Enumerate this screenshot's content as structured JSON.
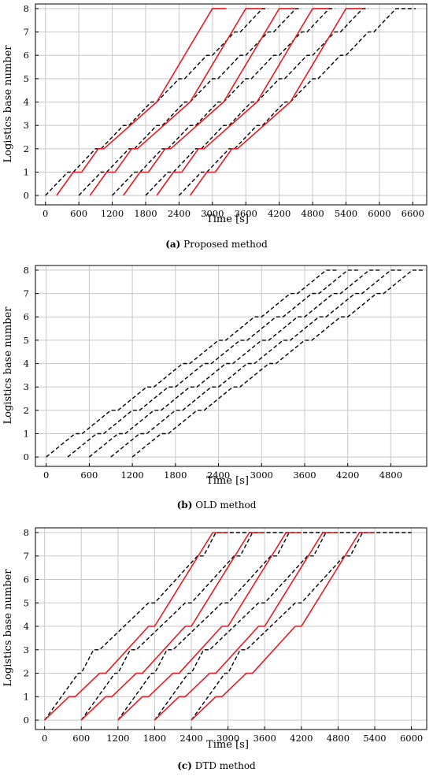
{
  "colors": {
    "proposed": "#e8191f",
    "baseline": "#000000",
    "grid": "#c8c8c8"
  },
  "chart_data": [
    {
      "type": "line",
      "caption_tag": "(a)",
      "caption_text": " Proposed method",
      "xlabel": "Time [s]",
      "ylabel": "Logistics base number",
      "xlim": [
        -180,
        6850
      ],
      "ylim": [
        -0.4,
        8.2
      ],
      "xticks": [
        "0",
        "600",
        "1200",
        "1800",
        "2400",
        "3000",
        "3600",
        "4200",
        "4800",
        "5400",
        "6000",
        "6600"
      ],
      "yticks": [
        "0",
        "1",
        "2",
        "3",
        "4",
        "5",
        "6",
        "7",
        "8"
      ],
      "grid": true,
      "series": [
        {
          "style": "dashed",
          "x": [
            0,
            400,
            500,
            900,
            1000,
            1400,
            1500,
            1900,
            2000,
            2400,
            2500,
            2900,
            3000,
            3400,
            3500,
            3900,
            4000
          ],
          "y": [
            0,
            1,
            1,
            2,
            2,
            3,
            3,
            4,
            4,
            5,
            5,
            6,
            6,
            7,
            7,
            8,
            8
          ]
        },
        {
          "style": "dashed",
          "x": [
            600,
            1000,
            1100,
            1500,
            1600,
            2000,
            2100,
            2500,
            2600,
            3000,
            3100,
            3500,
            3600,
            4000,
            4100,
            4500,
            4600
          ],
          "y": [
            0,
            1,
            1,
            2,
            2,
            3,
            3,
            4,
            4,
            5,
            5,
            6,
            6,
            7,
            7,
            8,
            8
          ]
        },
        {
          "style": "dashed",
          "x": [
            1200,
            1600,
            1700,
            2100,
            2200,
            2600,
            2700,
            3100,
            3200,
            3600,
            3700,
            4100,
            4200,
            4600,
            4700,
            5100,
            5200
          ],
          "y": [
            0,
            1,
            1,
            2,
            2,
            3,
            3,
            4,
            4,
            5,
            5,
            6,
            6,
            7,
            7,
            8,
            8
          ]
        },
        {
          "style": "dashed",
          "x": [
            1800,
            2200,
            2300,
            2700,
            2800,
            3200,
            3300,
            3700,
            3800,
            4200,
            4300,
            4700,
            4800,
            5200,
            5300,
            5700,
            5800
          ],
          "y": [
            0,
            1,
            1,
            2,
            2,
            3,
            3,
            4,
            4,
            5,
            5,
            6,
            6,
            7,
            7,
            8,
            8
          ]
        },
        {
          "style": "dashed",
          "x": [
            2400,
            2800,
            2900,
            3300,
            3400,
            3800,
            3900,
            4300,
            4400,
            4800,
            4900,
            5300,
            5400,
            5800,
            5900,
            6300,
            6650
          ],
          "y": [
            0,
            1,
            1,
            2,
            2,
            3,
            3,
            4,
            4,
            5,
            5,
            6,
            6,
            7,
            7,
            8,
            8
          ]
        },
        {
          "style": "solid",
          "x": [
            200,
            500,
            650,
            950,
            1050,
            2000,
            3000,
            3250
          ],
          "y": [
            0,
            1,
            1,
            2,
            2,
            4,
            8,
            8
          ]
        },
        {
          "style": "solid",
          "x": [
            800,
            1100,
            1250,
            1550,
            1650,
            2600,
            3600,
            3900
          ],
          "y": [
            0,
            1,
            1,
            2,
            2,
            4,
            8,
            8
          ]
        },
        {
          "style": "solid",
          "x": [
            1400,
            1700,
            1850,
            2150,
            2250,
            3200,
            4200,
            4500
          ],
          "y": [
            0,
            1,
            1,
            2,
            2,
            4,
            8,
            8
          ]
        },
        {
          "style": "solid",
          "x": [
            2000,
            2300,
            2450,
            2750,
            2850,
            3800,
            4800,
            5100
          ],
          "y": [
            0,
            1,
            1,
            2,
            2,
            4,
            8,
            8
          ]
        },
        {
          "style": "solid",
          "x": [
            2600,
            2900,
            3050,
            3350,
            3450,
            4400,
            5400,
            5700
          ],
          "y": [
            0,
            1,
            1,
            2,
            2,
            4,
            8,
            8
          ]
        }
      ]
    },
    {
      "type": "line",
      "caption_tag": "(b)",
      "caption_text": " OLD method",
      "xlabel": "Time [s]",
      "ylabel": "Logistics base number",
      "xlim": [
        -150,
        5300
      ],
      "ylim": [
        -0.4,
        8.2
      ],
      "xticks": [
        "0",
        "600",
        "1200",
        "1800",
        "2400",
        "3000",
        "3600",
        "4200",
        "4800"
      ],
      "yticks": [
        "0",
        "1",
        "2",
        "3",
        "4",
        "5",
        "6",
        "7",
        "8"
      ],
      "grid": true,
      "series": [
        {
          "style": "dashed",
          "x": [
            0,
            400,
            500,
            900,
            1000,
            1400,
            1500,
            1900,
            2000,
            2400,
            2500,
            2900,
            3000,
            3400,
            3500,
            3900,
            4050
          ],
          "y": [
            0,
            1,
            1,
            2,
            2,
            3,
            3,
            4,
            4,
            5,
            5,
            6,
            6,
            7,
            7,
            8,
            8
          ]
        },
        {
          "style": "dashed",
          "x": [
            300,
            700,
            800,
            1200,
            1300,
            1700,
            1800,
            2200,
            2300,
            2700,
            2800,
            3200,
            3300,
            3700,
            3800,
            4200,
            4350
          ],
          "y": [
            0,
            1,
            1,
            2,
            2,
            3,
            3,
            4,
            4,
            5,
            5,
            6,
            6,
            7,
            7,
            8,
            8
          ]
        },
        {
          "style": "dashed",
          "x": [
            600,
            1000,
            1100,
            1500,
            1600,
            2000,
            2100,
            2500,
            2600,
            3000,
            3100,
            3500,
            3600,
            4000,
            4100,
            4500,
            4650
          ],
          "y": [
            0,
            1,
            1,
            2,
            2,
            3,
            3,
            4,
            4,
            5,
            5,
            6,
            6,
            7,
            7,
            8,
            8
          ]
        },
        {
          "style": "dashed",
          "x": [
            900,
            1300,
            1400,
            1800,
            1900,
            2300,
            2400,
            2800,
            2900,
            3300,
            3400,
            3800,
            3900,
            4300,
            4400,
            4800,
            4950
          ],
          "y": [
            0,
            1,
            1,
            2,
            2,
            3,
            3,
            4,
            4,
            5,
            5,
            6,
            6,
            7,
            7,
            8,
            8
          ]
        },
        {
          "style": "dashed",
          "x": [
            1200,
            1600,
            1700,
            2100,
            2200,
            2600,
            2700,
            3100,
            3200,
            3600,
            3700,
            4100,
            4200,
            4600,
            4700,
            5100,
            5250
          ],
          "y": [
            0,
            1,
            1,
            2,
            2,
            3,
            3,
            4,
            4,
            5,
            5,
            6,
            6,
            7,
            7,
            8,
            8
          ]
        }
      ]
    },
    {
      "type": "line",
      "caption_tag": "(c)",
      "caption_text": " DTD method",
      "xlabel": "Time [s]",
      "ylabel": "Logistics base number",
      "xlim": [
        -150,
        6250
      ],
      "ylim": [
        -0.4,
        8.2
      ],
      "xticks": [
        "0",
        "600",
        "1200",
        "1800",
        "2400",
        "3000",
        "3600",
        "4200",
        "4800",
        "5400",
        "6000"
      ],
      "yticks": [
        "0",
        "1",
        "2",
        "3",
        "4",
        "5",
        "6",
        "7",
        "8"
      ],
      "grid": true,
      "series": [
        {
          "style": "dashed",
          "x": [
            0,
            550,
            600,
            800,
            900,
            1700,
            1800,
            2500,
            2600,
            2800,
            2900,
            3200,
            3400
          ],
          "y": [
            0,
            2,
            2,
            3,
            3,
            5,
            5,
            7,
            7,
            8,
            8,
            8,
            8
          ]
        },
        {
          "style": "dashed",
          "x": [
            600,
            1150,
            1200,
            1400,
            1500,
            2300,
            2400,
            3100,
            3200,
            3400,
            3500,
            3800,
            4000
          ],
          "y": [
            0,
            2,
            2,
            3,
            3,
            5,
            5,
            7,
            7,
            8,
            8,
            8,
            8
          ]
        },
        {
          "style": "dashed",
          "x": [
            1200,
            1750,
            1800,
            2000,
            2100,
            2900,
            3000,
            3700,
            3800,
            4000,
            4100,
            4400,
            4600
          ],
          "y": [
            0,
            2,
            2,
            3,
            3,
            5,
            5,
            7,
            7,
            8,
            8,
            8,
            8
          ]
        },
        {
          "style": "dashed",
          "x": [
            1800,
            2350,
            2400,
            2600,
            2700,
            3500,
            3600,
            4300,
            4400,
            4600,
            4700,
            5000,
            5200
          ],
          "y": [
            0,
            2,
            2,
            3,
            3,
            5,
            5,
            7,
            7,
            8,
            8,
            8,
            8
          ]
        },
        {
          "style": "dashed",
          "x": [
            2400,
            2950,
            3000,
            3200,
            3300,
            4100,
            4200,
            4900,
            5000,
            5200,
            5300,
            5600,
            6000
          ],
          "y": [
            0,
            2,
            2,
            3,
            3,
            5,
            5,
            7,
            7,
            8,
            8,
            8,
            8
          ]
        },
        {
          "style": "solid",
          "x": [
            0,
            400,
            500,
            900,
            1000,
            1700,
            1800,
            2750,
            3000
          ],
          "y": [
            0,
            1,
            1,
            2,
            2,
            4,
            4,
            8,
            8
          ]
        },
        {
          "style": "solid",
          "x": [
            600,
            1000,
            1100,
            1500,
            1600,
            2300,
            2400,
            3350,
            3600
          ],
          "y": [
            0,
            1,
            1,
            2,
            2,
            4,
            4,
            8,
            8
          ]
        },
        {
          "style": "solid",
          "x": [
            1200,
            1600,
            1700,
            2100,
            2200,
            2900,
            3000,
            3950,
            4200
          ],
          "y": [
            0,
            1,
            1,
            2,
            2,
            4,
            4,
            8,
            8
          ]
        },
        {
          "style": "solid",
          "x": [
            1800,
            2200,
            2300,
            2700,
            2800,
            3500,
            3600,
            4550,
            4800
          ],
          "y": [
            0,
            1,
            1,
            2,
            2,
            4,
            4,
            8,
            8
          ]
        },
        {
          "style": "solid",
          "x": [
            2400,
            2800,
            2900,
            3300,
            3400,
            4100,
            4200,
            5150,
            5400
          ],
          "y": [
            0,
            1,
            1,
            2,
            2,
            4,
            4,
            8,
            8
          ]
        }
      ]
    }
  ]
}
